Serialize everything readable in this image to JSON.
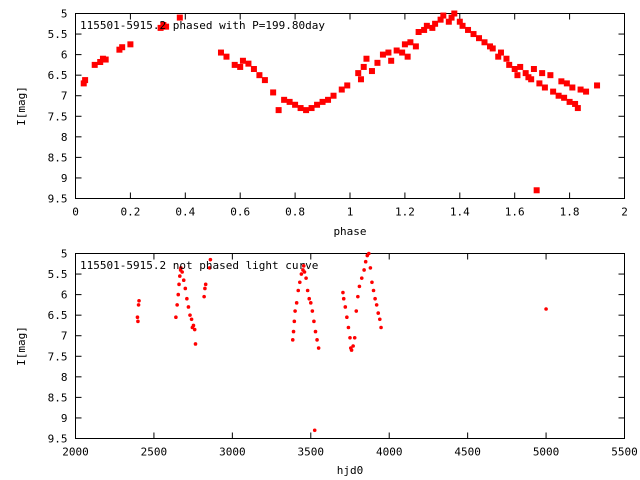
{
  "colors": {
    "points": "#ff0000",
    "axes": "#000000"
  },
  "chart_data": [
    {
      "type": "scatter",
      "title": "115501-5915.2 phased with P=199.80day",
      "xlabel": "phase",
      "ylabel": "I[mag]",
      "xlim": [
        0,
        2
      ],
      "ylim": [
        5,
        9.5
      ],
      "y_inverted": true,
      "grid": false,
      "x_ticks": [
        "0",
        "0.2",
        "0.4",
        "0.6",
        "0.8",
        "1",
        "1.2",
        "1.4",
        "1.6",
        "1.8",
        "2"
      ],
      "y_ticks": [
        "5",
        "5.5",
        "6",
        "6.5",
        "7",
        "7.5",
        "8",
        "8.5",
        "9",
        "9.5"
      ],
      "series": [
        {
          "marker": "square",
          "points": [
            [
              0.03,
              6.7
            ],
            [
              0.035,
              6.62
            ],
            [
              0.07,
              6.25
            ],
            [
              0.09,
              6.18
            ],
            [
              0.1,
              6.1
            ],
            [
              0.11,
              6.12
            ],
            [
              0.16,
              5.88
            ],
            [
              0.17,
              5.82
            ],
            [
              0.2,
              5.75
            ],
            [
              0.31,
              5.35
            ],
            [
              0.32,
              5.28
            ],
            [
              0.33,
              5.32
            ],
            [
              0.38,
              5.1
            ],
            [
              0.53,
              5.95
            ],
            [
              0.55,
              6.05
            ],
            [
              0.58,
              6.25
            ],
            [
              0.6,
              6.3
            ],
            [
              0.61,
              6.15
            ],
            [
              0.63,
              6.22
            ],
            [
              0.65,
              6.35
            ],
            [
              0.67,
              6.5
            ],
            [
              0.69,
              6.62
            ],
            [
              0.72,
              6.92
            ],
            [
              0.74,
              7.35
            ],
            [
              0.76,
              7.1
            ],
            [
              0.78,
              7.15
            ],
            [
              0.8,
              7.22
            ],
            [
              0.82,
              7.3
            ],
            [
              0.84,
              7.35
            ],
            [
              0.86,
              7.3
            ],
            [
              0.88,
              7.22
            ],
            [
              0.9,
              7.15
            ],
            [
              0.92,
              7.1
            ],
            [
              0.94,
              7.0
            ],
            [
              0.97,
              6.85
            ],
            [
              0.99,
              6.75
            ],
            [
              1.03,
              6.45
            ],
            [
              1.04,
              6.6
            ],
            [
              1.05,
              6.3
            ],
            [
              1.06,
              6.1
            ],
            [
              1.08,
              6.4
            ],
            [
              1.1,
              6.2
            ],
            [
              1.12,
              6.0
            ],
            [
              1.14,
              5.95
            ],
            [
              1.15,
              6.15
            ],
            [
              1.17,
              5.9
            ],
            [
              1.19,
              5.95
            ],
            [
              1.2,
              5.75
            ],
            [
              1.21,
              6.05
            ],
            [
              1.22,
              5.7
            ],
            [
              1.24,
              5.8
            ],
            [
              1.25,
              5.45
            ],
            [
              1.27,
              5.4
            ],
            [
              1.28,
              5.3
            ],
            [
              1.3,
              5.35
            ],
            [
              1.31,
              5.25
            ],
            [
              1.33,
              5.15
            ],
            [
              1.34,
              5.05
            ],
            [
              1.36,
              5.2
            ],
            [
              1.37,
              5.1
            ],
            [
              1.38,
              5.0
            ],
            [
              1.4,
              5.2
            ],
            [
              1.41,
              5.3
            ],
            [
              1.43,
              5.4
            ],
            [
              1.45,
              5.5
            ],
            [
              1.47,
              5.6
            ],
            [
              1.49,
              5.7
            ],
            [
              1.51,
              5.8
            ],
            [
              1.52,
              5.85
            ],
            [
              1.54,
              6.05
            ],
            [
              1.55,
              5.95
            ],
            [
              1.57,
              6.1
            ],
            [
              1.58,
              6.25
            ],
            [
              1.6,
              6.35
            ],
            [
              1.61,
              6.5
            ],
            [
              1.62,
              6.3
            ],
            [
              1.64,
              6.45
            ],
            [
              1.65,
              6.55
            ],
            [
              1.66,
              6.6
            ],
            [
              1.67,
              6.35
            ],
            [
              1.69,
              6.7
            ],
            [
              1.7,
              6.45
            ],
            [
              1.71,
              6.8
            ],
            [
              1.73,
              6.5
            ],
            [
              1.74,
              6.9
            ],
            [
              1.76,
              7.0
            ],
            [
              1.77,
              6.65
            ],
            [
              1.78,
              7.05
            ],
            [
              1.79,
              6.7
            ],
            [
              1.8,
              7.15
            ],
            [
              1.81,
              6.8
            ],
            [
              1.82,
              7.2
            ],
            [
              1.83,
              7.3
            ],
            [
              1.84,
              6.85
            ],
            [
              1.86,
              6.9
            ],
            [
              1.9,
              6.75
            ],
            [
              1.68,
              9.3
            ]
          ]
        }
      ]
    },
    {
      "type": "scatter",
      "title": "115501-5915.2 not phased light curve",
      "xlabel": "hjd0",
      "ylabel": "I[mag]",
      "xlim": [
        2000,
        5500
      ],
      "ylim": [
        5,
        9.5
      ],
      "y_inverted": true,
      "grid": false,
      "x_ticks": [
        "2000",
        "2500",
        "3000",
        "3500",
        "4000",
        "4500",
        "5000",
        "5500"
      ],
      "y_ticks": [
        "5",
        "5.5",
        "6",
        "6.5",
        "7",
        "7.5",
        "8",
        "8.5",
        "9",
        "9.5"
      ],
      "series": [
        {
          "marker": "dot",
          "points": [
            [
              2395,
              6.55
            ],
            [
              2398,
              6.65
            ],
            [
              2402,
              6.25
            ],
            [
              2405,
              6.15
            ],
            [
              2640,
              6.55
            ],
            [
              2648,
              6.25
            ],
            [
              2655,
              6.0
            ],
            [
              2660,
              5.75
            ],
            [
              2665,
              5.55
            ],
            [
              2670,
              5.4
            ],
            [
              2672,
              5.35
            ],
            [
              2680,
              5.45
            ],
            [
              2690,
              5.65
            ],
            [
              2700,
              5.85
            ],
            [
              2710,
              6.1
            ],
            [
              2720,
              6.3
            ],
            [
              2730,
              6.5
            ],
            [
              2740,
              6.6
            ],
            [
              2745,
              6.8
            ],
            [
              2752,
              6.75
            ],
            [
              2760,
              6.85
            ],
            [
              2765,
              7.2
            ],
            [
              2820,
              6.05
            ],
            [
              2825,
              5.85
            ],
            [
              2830,
              5.75
            ],
            [
              2855,
              5.35
            ],
            [
              2860,
              5.15
            ],
            [
              3385,
              7.1
            ],
            [
              3390,
              6.9
            ],
            [
              3395,
              6.65
            ],
            [
              3400,
              6.4
            ],
            [
              3410,
              6.2
            ],
            [
              3420,
              5.9
            ],
            [
              3430,
              5.7
            ],
            [
              3440,
              5.5
            ],
            [
              3450,
              5.4
            ],
            [
              3455,
              5.3
            ],
            [
              3460,
              5.45
            ],
            [
              3470,
              5.6
            ],
            [
              3480,
              5.9
            ],
            [
              3490,
              6.1
            ],
            [
              3500,
              6.2
            ],
            [
              3510,
              6.4
            ],
            [
              3520,
              6.65
            ],
            [
              3530,
              6.9
            ],
            [
              3540,
              7.1
            ],
            [
              3550,
              7.3
            ],
            [
              3525,
              9.3
            ],
            [
              3705,
              5.95
            ],
            [
              3710,
              6.1
            ],
            [
              3720,
              6.3
            ],
            [
              3730,
              6.55
            ],
            [
              3740,
              6.8
            ],
            [
              3750,
              7.05
            ],
            [
              3755,
              7.3
            ],
            [
              3760,
              7.35
            ],
            [
              3770,
              7.25
            ],
            [
              3780,
              7.05
            ],
            [
              3790,
              6.4
            ],
            [
              3800,
              6.05
            ],
            [
              3810,
              5.8
            ],
            [
              3825,
              5.6
            ],
            [
              3840,
              5.4
            ],
            [
              3850,
              5.2
            ],
            [
              3860,
              5.05
            ],
            [
              3870,
              5.0
            ],
            [
              3880,
              5.35
            ],
            [
              3890,
              5.7
            ],
            [
              3900,
              5.9
            ],
            [
              3910,
              6.1
            ],
            [
              3920,
              6.25
            ],
            [
              3930,
              6.45
            ],
            [
              3940,
              6.6
            ],
            [
              3948,
              6.8
            ],
            [
              5000,
              6.35
            ]
          ]
        }
      ]
    }
  ]
}
